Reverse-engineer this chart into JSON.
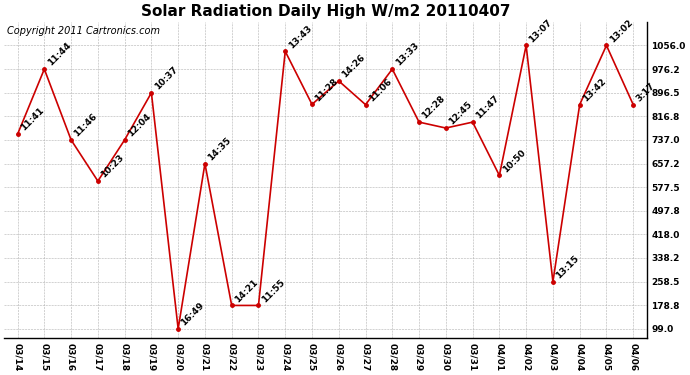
{
  "title": "Solar Radiation Daily High W/m2 20110407",
  "copyright": "Copyright 2011 Cartronics.com",
  "dates": [
    "03/14",
    "03/15",
    "03/16",
    "03/17",
    "03/18",
    "03/19",
    "03/20",
    "03/21",
    "03/22",
    "03/23",
    "03/24",
    "03/25",
    "03/26",
    "03/27",
    "03/28",
    "03/29",
    "03/30",
    "03/31",
    "04/01",
    "04/02",
    "04/03",
    "04/04",
    "04/05",
    "04/06"
  ],
  "values": [
    756,
    976,
    737,
    598,
    737,
    896,
    99,
    657,
    178,
    178,
    1036,
    857,
    936,
    856,
    976,
    797,
    777,
    797,
    617,
    1056,
    258,
    856,
    1056,
    856
  ],
  "time_labels": [
    "11:41",
    "11:44",
    "11:46",
    "10:23",
    "12:04",
    "10:37",
    "16:49",
    "14:35",
    "14:21",
    "11:55",
    "13:43",
    "11:28",
    "14:26",
    "11:06",
    "13:33",
    "12:28",
    "12:45",
    "11:47",
    "10:50",
    "13:07",
    "13:15",
    "13:42",
    "13:02",
    "3:17"
  ],
  "ymin": 99.0,
  "ymax": 1056.0,
  "yticks": [
    99.0,
    178.8,
    258.5,
    338.2,
    418.0,
    497.8,
    577.5,
    657.2,
    737.0,
    816.8,
    896.5,
    976.2,
    1056.0
  ],
  "ytick_labels": [
    "99.0",
    "178.8",
    "258.5",
    "338.2",
    "418.0",
    "497.8",
    "577.5",
    "657.2",
    "737.0",
    "816.8",
    "896.5",
    "976.2",
    "1056.0"
  ],
  "line_color": "#cc0000",
  "marker_color": "#cc0000",
  "bg_color": "#ffffff",
  "grid_color": "#b0b0b0",
  "title_fontsize": 11,
  "label_fontsize": 6.5,
  "tick_fontsize": 6.5,
  "copyright_fontsize": 7
}
